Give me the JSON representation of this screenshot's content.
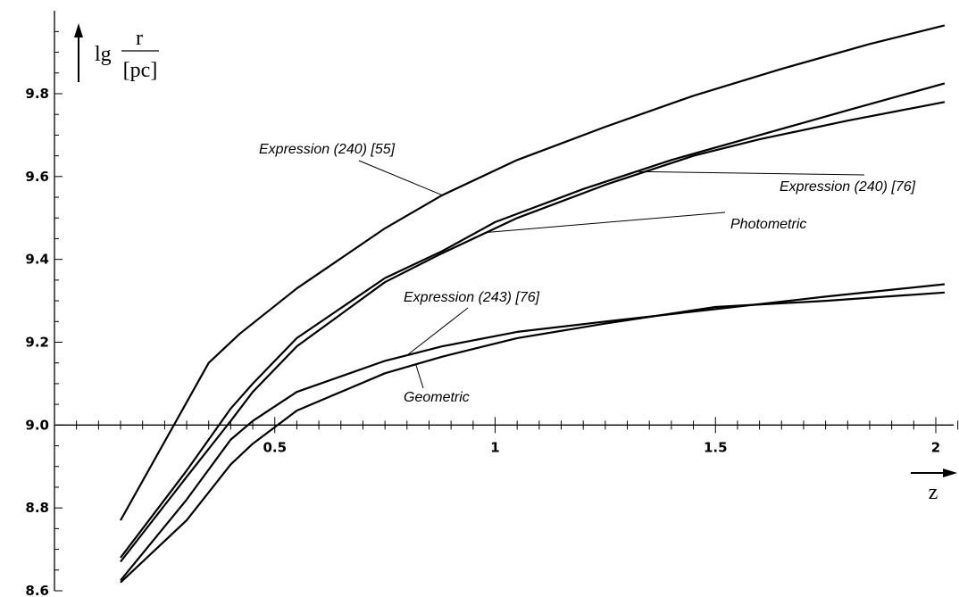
{
  "chart_data": {
    "type": "line",
    "ylabel": {
      "prefix": "lg",
      "numerator": "r",
      "denominator": "[pc]"
    },
    "xlabel": "z",
    "xlim": [
      0,
      2.05
    ],
    "ylim": [
      8.6,
      9.96
    ],
    "x_ticks": [
      {
        "value": 0.5,
        "label": "0.5"
      },
      {
        "value": 1,
        "label": "1"
      },
      {
        "value": 1.5,
        "label": "1.5"
      },
      {
        "value": 2,
        "label": "2"
      }
    ],
    "y_ticks": [
      {
        "value": 8.6,
        "label": "8.6"
      },
      {
        "value": 8.8,
        "label": "8.8"
      },
      {
        "value": 9.0,
        "label": "9.0"
      },
      {
        "value": 9.2,
        "label": "9.2"
      },
      {
        "value": 9.4,
        "label": "9.4"
      },
      {
        "value": 9.6,
        "label": "9.6"
      },
      {
        "value": 9.8,
        "label": "9.8"
      }
    ],
    "grid": false,
    "series": [
      {
        "name": "Expression (240) [55]",
        "x": [
          0.15,
          0.35,
          0.42,
          0.55,
          0.75,
          0.88,
          1.05,
          1.25,
          1.45,
          1.65,
          1.85,
          2.02
        ],
        "y": [
          8.77,
          9.15,
          9.22,
          9.33,
          9.475,
          9.555,
          9.64,
          9.72,
          9.795,
          9.86,
          9.92,
          9.965
        ]
      },
      {
        "name": "Expression (240) [76]",
        "x": [
          0.15,
          0.3,
          0.4,
          0.45,
          0.55,
          0.75,
          0.88,
          1.0,
          1.2,
          1.4,
          1.6,
          1.8,
          2.02
        ],
        "y": [
          8.68,
          8.89,
          9.04,
          9.1,
          9.21,
          9.355,
          9.42,
          9.49,
          9.57,
          9.64,
          9.7,
          9.76,
          9.825
        ]
      },
      {
        "name": "Photometric",
        "x": [
          0.15,
          0.3,
          0.4,
          0.45,
          0.55,
          0.75,
          0.88,
          1.05,
          1.25,
          1.45,
          1.6,
          1.8,
          2.02
        ],
        "y": [
          8.67,
          8.875,
          9.01,
          9.08,
          9.19,
          9.345,
          9.415,
          9.5,
          9.58,
          9.65,
          9.69,
          9.735,
          9.78
        ]
      },
      {
        "name": "Expression (243) [76]",
        "x": [
          0.15,
          0.3,
          0.4,
          0.45,
          0.55,
          0.75,
          0.88,
          1.05,
          1.25,
          1.5,
          1.75,
          2.02
        ],
        "y": [
          8.625,
          8.82,
          8.965,
          9.01,
          9.08,
          9.155,
          9.19,
          9.225,
          9.25,
          9.28,
          9.31,
          9.34
        ]
      },
      {
        "name": "Geometric",
        "x": [
          0.15,
          0.3,
          0.4,
          0.45,
          0.55,
          0.75,
          0.88,
          1.05,
          1.25,
          1.5,
          1.75,
          2.02
        ],
        "y": [
          8.62,
          8.77,
          8.905,
          8.955,
          9.035,
          9.125,
          9.165,
          9.21,
          9.245,
          9.285,
          9.3,
          9.32
        ]
      }
    ],
    "annotations": [
      {
        "text": "Expression (240) [55]",
        "series": 0,
        "at_x": 0.88
      },
      {
        "text": "Expression (240) [76]",
        "series": 1,
        "at_x": 1.32
      },
      {
        "text": "Photometric",
        "series": 2,
        "at_x": 0.98
      },
      {
        "text": "Expression (243) [76]",
        "series": 3,
        "at_x": 0.8
      },
      {
        "text": "Geometric",
        "series": 4,
        "at_x": 0.82
      }
    ]
  }
}
